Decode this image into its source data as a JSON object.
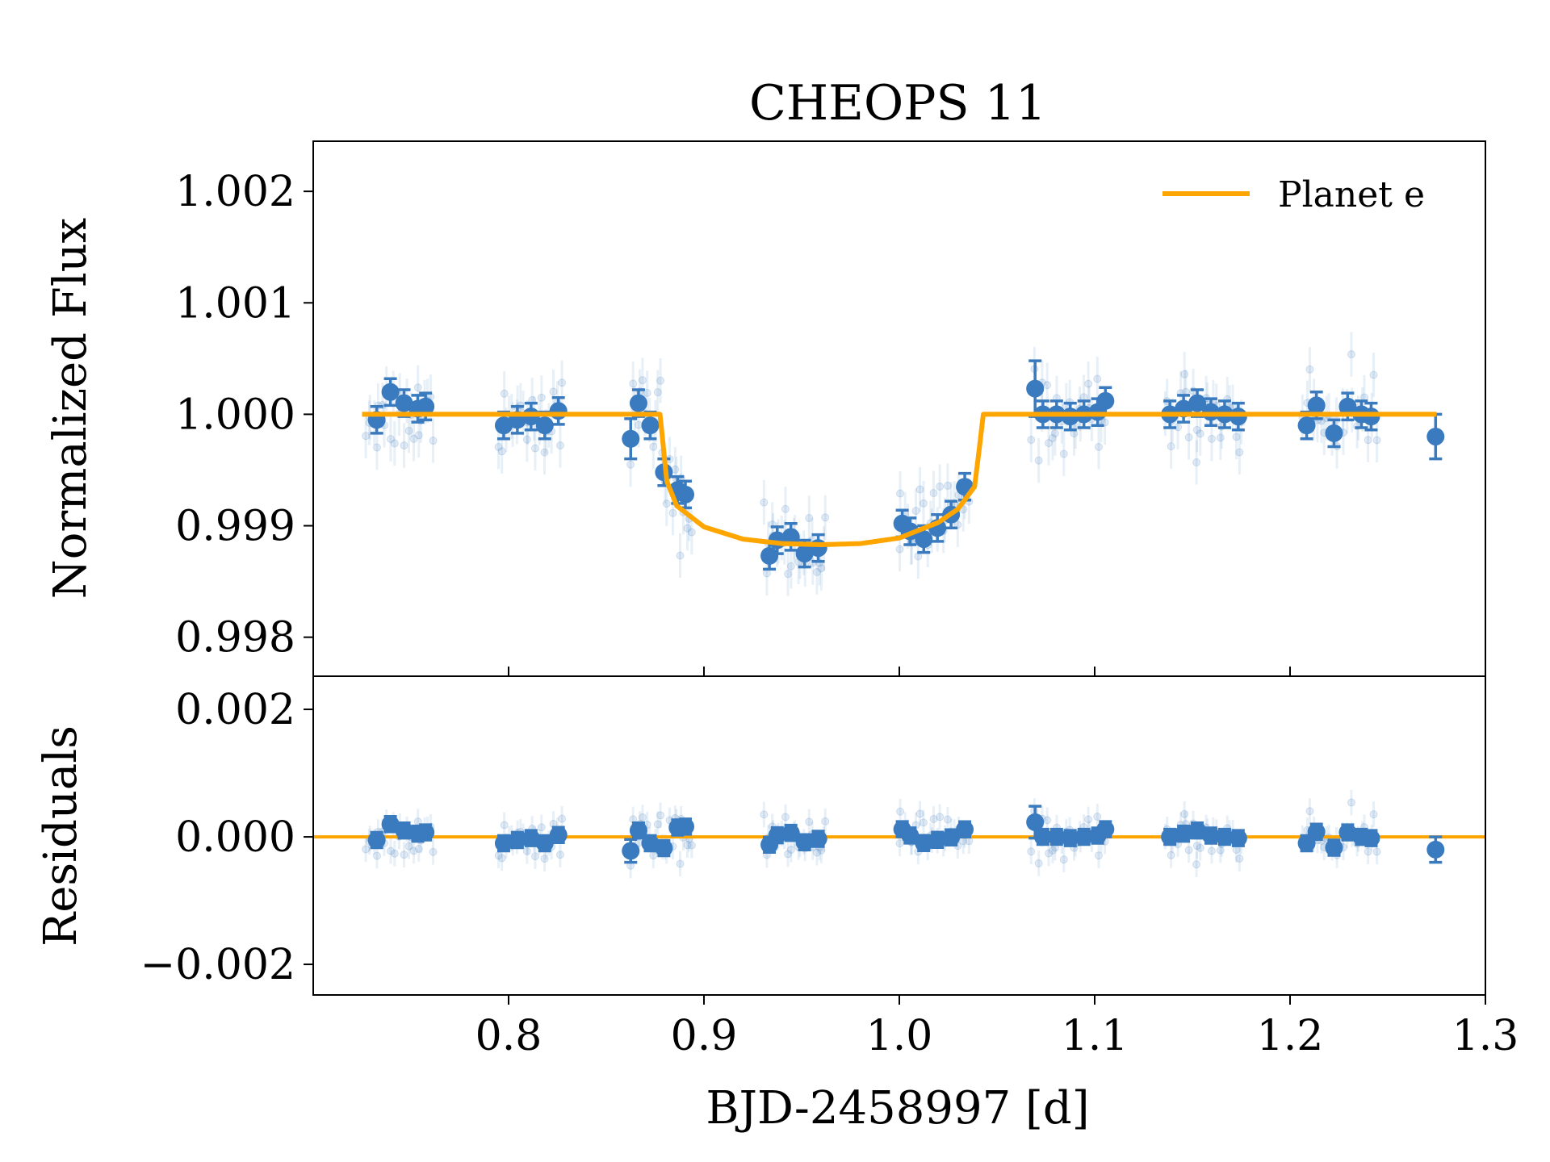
{
  "chart_data": {
    "type": "scatter",
    "title": "CHEOPS 11",
    "xlabel": "BJD-2458997 [d]",
    "xlim": [
      0.7,
      1.3
    ],
    "x_ticks": [
      0.8,
      0.9,
      1.0,
      1.1,
      1.2,
      1.3
    ],
    "x_tick_labels": [
      "0.8",
      "0.9",
      "1.0",
      "1.1",
      "1.2",
      "1.3"
    ],
    "panels": [
      {
        "name": "flux",
        "ylabel": "Normalized Flux",
        "ylim": [
          0.99765,
          1.00245
        ],
        "y_ticks": [
          0.998,
          0.999,
          1.0,
          1.001,
          1.002
        ],
        "y_tick_labels": [
          "0.998",
          "0.999",
          "1.000",
          "1.001",
          "1.002"
        ]
      },
      {
        "name": "residuals",
        "ylabel": "Residuals",
        "ylim": [
          -0.00248,
          0.00252
        ],
        "y_ticks": [
          -0.002,
          0.0,
          0.002
        ],
        "y_tick_labels": [
          "−0.002",
          "0.000",
          "0.002"
        ]
      }
    ],
    "legend": {
      "position": "top-right",
      "entries": [
        "Planet e"
      ]
    },
    "colors": {
      "data": "#3a7bbf",
      "model": "#ffa500"
    },
    "model": {
      "name": "Planet e",
      "baseline": 1.0,
      "ingress_start": 0.8775,
      "ingress_end": 0.886,
      "egress_start": 1.0385,
      "egress_end": 1.043,
      "t_mid": 0.96,
      "depth": 0.00117,
      "curve_x": [
        0.725,
        0.8775,
        0.881,
        0.886,
        0.9,
        0.92,
        0.94,
        0.96,
        0.98,
        1.0,
        1.02,
        1.03,
        1.0385,
        1.041,
        1.043,
        1.275
      ],
      "curve_y": [
        1.0,
        1.0,
        0.9994,
        0.99918,
        0.99899,
        0.99888,
        0.99884,
        0.99883,
        0.99884,
        0.99889,
        0.99903,
        0.99915,
        0.99935,
        0.9997,
        1.0,
        1.0
      ]
    },
    "binned": {
      "x": [
        0.7325,
        0.7395,
        0.7465,
        0.7535,
        0.7575,
        0.7975,
        0.8045,
        0.8115,
        0.8185,
        0.8255,
        0.8625,
        0.8665,
        0.8725,
        0.8795,
        0.8865,
        0.8905,
        0.9335,
        0.9375,
        0.9445,
        0.9515,
        0.9585,
        1.0015,
        1.0055,
        1.0125,
        1.0195,
        1.0265,
        1.0335,
        1.0695,
        1.0735,
        1.0805,
        1.0875,
        1.0945,
        1.1015,
        1.1055,
        1.1385,
        1.1455,
        1.1525,
        1.1595,
        1.1665,
        1.1735,
        1.2085,
        1.2135,
        1.2225,
        1.2295,
        1.2365,
        1.2415,
        1.2745
      ],
      "y": [
        0.99995,
        1.0002,
        1.0001,
        1.00005,
        1.00007,
        0.9999,
        0.99995,
        0.99998,
        0.9999,
        1.00003,
        0.99978,
        1.0001,
        0.9999,
        0.99948,
        0.99932,
        0.99928,
        0.99873,
        0.99887,
        0.9989,
        0.99875,
        0.9988,
        0.99902,
        0.99895,
        0.99888,
        0.99898,
        0.9991,
        0.99935,
        1.00023,
        1.0,
        1.0,
        0.99998,
        1.0,
        1.00002,
        1.00012,
        1.0,
        1.00005,
        1.0001,
        1.00002,
        1.0,
        0.99998,
        0.9999,
        1.00008,
        0.99983,
        1.00007,
        1.0,
        0.99998,
        0.9998
      ],
      "err": [
        0.00012,
        0.00012,
        0.00012,
        0.00012,
        0.00012,
        0.00012,
        0.00012,
        0.00012,
        0.00012,
        0.00012,
        0.00018,
        0.00012,
        0.00012,
        0.00012,
        0.00012,
        0.00012,
        0.00012,
        0.00012,
        0.00012,
        0.00012,
        0.00012,
        0.00012,
        0.00012,
        0.00012,
        0.00012,
        0.00012,
        0.00012,
        0.00025,
        0.00012,
        0.00012,
        0.00012,
        0.00012,
        0.00012,
        0.00012,
        0.00012,
        0.00012,
        0.00012,
        0.00012,
        0.00012,
        0.00012,
        0.00012,
        0.00012,
        0.00012,
        0.00012,
        0.00012,
        0.00012,
        0.0002
      ]
    },
    "raw_groups": [
      {
        "x_start": 0.726,
        "x_end": 0.762
      },
      {
        "x_start": 0.794,
        "x_end": 0.828
      },
      {
        "x_start": 0.862,
        "x_end": 0.894
      },
      {
        "x_start": 0.93,
        "x_end": 0.963
      },
      {
        "x_start": 0.999,
        "x_end": 1.036
      },
      {
        "x_start": 1.067,
        "x_end": 1.106
      },
      {
        "x_start": 1.135,
        "x_end": 1.176
      },
      {
        "x_start": 1.206,
        "x_end": 1.245
      }
    ],
    "raw_scatter_sigma": 0.00022,
    "raw_error": 0.0002
  }
}
